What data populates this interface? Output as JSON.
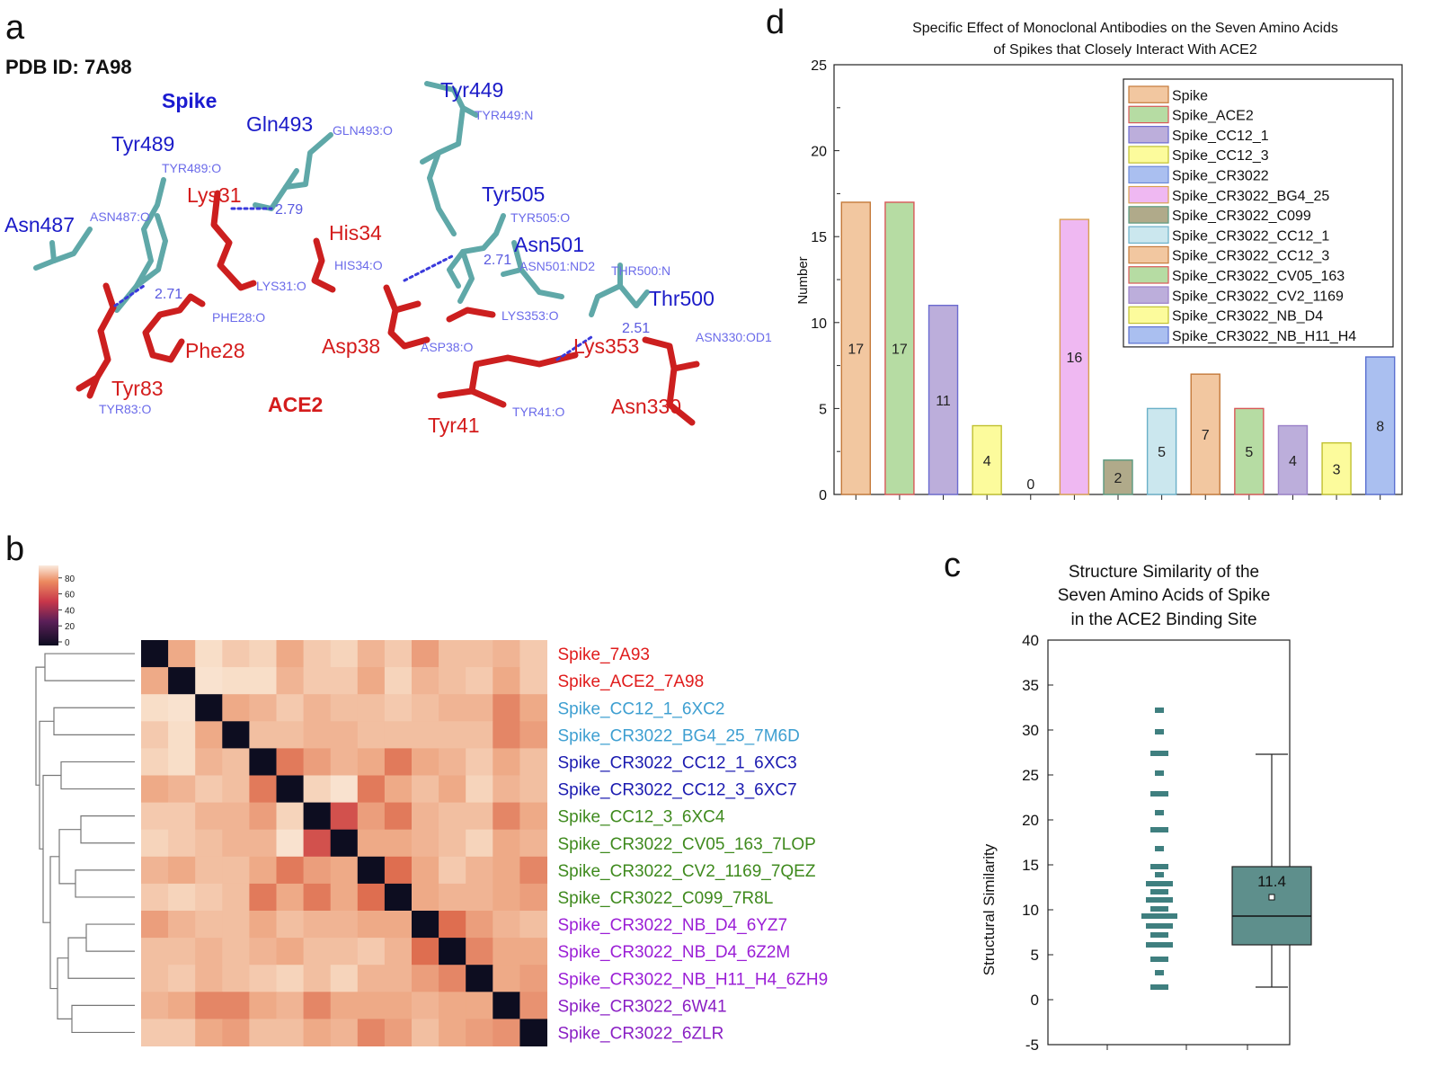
{
  "panel_labels": {
    "a": "a",
    "b": "b",
    "c": "c",
    "d": "d"
  },
  "panel_a": {
    "pdb_id": "PDB ID: 7A98",
    "spike_label": "Spike",
    "ace2_label": "ACE2",
    "spike_residues": [
      "Tyr449",
      "Gln493",
      "Tyr489",
      "Asn487",
      "Tyr505",
      "Asn501",
      "Thr500"
    ],
    "ace2_residues": [
      "Lys31",
      "His34",
      "Phe28",
      "Tyr83",
      "Asp38",
      "Lys353",
      "Tyr41",
      "Asn330"
    ],
    "atom_labels": [
      "TYR449:N",
      "GLN493:O",
      "TYR489:O",
      "ASN487:O",
      "TYR505:O",
      "ASN501:ND2",
      "THR500:N",
      "HIS34:O",
      "LYS31:O",
      "PHE28:O",
      "ASP38:O",
      "LYS353:O",
      "ASN330:OD1",
      "TYR41:O",
      "TYR83:O"
    ],
    "distances": [
      "2.79",
      "2.71",
      "2.71",
      "2.51"
    ]
  },
  "panel_b": {
    "color_scale_ticks": [
      "80",
      "60",
      "40",
      "20",
      "0"
    ],
    "row_labels": [
      {
        "text": "Spike_7A93",
        "color": "#e01c1c"
      },
      {
        "text": "Spike_ACE2_7A98",
        "color": "#e01c1c"
      },
      {
        "text": "Spike_CC12_1_6XC2",
        "color": "#3e9fd1"
      },
      {
        "text": "Spike_CR3022_BG4_25_7M6D",
        "color": "#3e9fd1"
      },
      {
        "text": "Spike_CR3022_CC12_1_6XC3",
        "color": "#1b1bb0"
      },
      {
        "text": "Spike_CR3022_CC12_3_6XC7",
        "color": "#1b1bb0"
      },
      {
        "text": "Spike_CC12_3_6XC4",
        "color": "#3f8a1e"
      },
      {
        "text": "Spike_CR3022_CV05_163_7LOP",
        "color": "#3f8a1e"
      },
      {
        "text": "Spike_CR3022_CV2_1169_7QEZ",
        "color": "#3f8a1e"
      },
      {
        "text": "Spike_CR3022_C099_7R8L",
        "color": "#3f8a1e"
      },
      {
        "text": "Spike_CR3022_NB_D4_6YZ7",
        "color": "#9b1fd6"
      },
      {
        "text": "Spike_CR3022_NB_D4_6Z2M",
        "color": "#9b1fd6"
      },
      {
        "text": "Spike_CR3022_NB_H11_H4_6ZH9",
        "color": "#9b1fd6"
      },
      {
        "text": "Spike_CR3022_6W41",
        "color": "#8a1fc4"
      },
      {
        "text": "Spike_CR3022_6ZLR",
        "color": "#8a1fc4"
      }
    ],
    "matrix": [
      [
        0,
        80,
        90,
        86,
        88,
        80,
        86,
        88,
        82,
        86,
        78,
        84,
        84,
        82,
        86
      ],
      [
        80,
        0,
        92,
        90,
        90,
        82,
        86,
        86,
        80,
        88,
        82,
        84,
        86,
        80,
        86
      ],
      [
        90,
        92,
        0,
        80,
        82,
        86,
        82,
        84,
        84,
        86,
        84,
        82,
        82,
        74,
        80
      ],
      [
        86,
        90,
        80,
        0,
        84,
        84,
        82,
        82,
        84,
        84,
        84,
        84,
        84,
        74,
        78
      ],
      [
        88,
        90,
        82,
        84,
        0,
        72,
        78,
        82,
        80,
        72,
        80,
        82,
        86,
        80,
        84
      ],
      [
        80,
        82,
        86,
        84,
        72,
        0,
        88,
        92,
        72,
        80,
        84,
        80,
        88,
        82,
        84
      ],
      [
        86,
        86,
        82,
        82,
        78,
        88,
        0,
        62,
        78,
        72,
        82,
        84,
        84,
        74,
        80
      ],
      [
        88,
        86,
        84,
        82,
        82,
        92,
        62,
        0,
        80,
        80,
        82,
        84,
        88,
        80,
        82
      ],
      [
        82,
        80,
        84,
        84,
        80,
        72,
        78,
        80,
        0,
        70,
        80,
        86,
        82,
        80,
        74
      ],
      [
        86,
        88,
        86,
        84,
        72,
        80,
        72,
        80,
        70,
        0,
        80,
        82,
        82,
        80,
        78
      ],
      [
        78,
        82,
        84,
        84,
        80,
        84,
        82,
        82,
        80,
        80,
        0,
        70,
        78,
        82,
        84
      ],
      [
        84,
        84,
        82,
        84,
        82,
        80,
        84,
        84,
        86,
        82,
        70,
        0,
        74,
        80,
        80
      ],
      [
        84,
        86,
        82,
        84,
        86,
        88,
        84,
        88,
        82,
        82,
        78,
        74,
        0,
        80,
        78
      ],
      [
        82,
        80,
        74,
        74,
        80,
        82,
        74,
        80,
        80,
        80,
        82,
        80,
        80,
        0,
        76
      ],
      [
        86,
        86,
        80,
        78,
        84,
        84,
        80,
        82,
        74,
        78,
        84,
        80,
        78,
        76,
        0
      ]
    ]
  },
  "chart_data": [
    {
      "type": "bar",
      "title": "Specific Effect of Monoclonal Antibodies on the Seven Amino Acids of Spikes that Closely Interact With ACE2",
      "title_lines": [
        "Specific Effect of Monoclonal Antibodies on the Seven Amino Acids",
        "of Spikes that Closely Interact With ACE2"
      ],
      "xlabel": "",
      "ylabel": "Number",
      "ylim": [
        0,
        25
      ],
      "yticks": [
        "0",
        "5",
        "10",
        "15",
        "20",
        "25"
      ],
      "categories": [
        "Spike",
        "Spike_ACE2",
        "Spike_CC12_1",
        "Spike_CC12_3",
        "Spike_CR3022",
        "Spike_CR3022_BG4_25",
        "Spike_CR3022_C099",
        "Spike_CR3022_CC12_1",
        "Spike_CR3022_CC12_3",
        "Spike_CR3022_CV05_163",
        "Spike_CR3022_CV2_1169",
        "Spike_CR3022_NB_D4",
        "Spike_CR3022_NB_H11_H4"
      ],
      "values": [
        17,
        17,
        11,
        4,
        0,
        16,
        2,
        5,
        7,
        5,
        4,
        3,
        8
      ],
      "value_labels": [
        "17",
        "17",
        "11",
        "4",
        "0",
        "16",
        "2",
        "5",
        "7",
        "5",
        "4",
        "3",
        "8"
      ],
      "fill_colors": [
        "#f2c7a0",
        "#b6dca3",
        "#bcaedb",
        "#fcfb9c",
        "#aabff0",
        "#efb8f2",
        "#b0aa8a",
        "#cbe7ee",
        "#f2c7a0",
        "#b6dca3",
        "#bcaedb",
        "#fcfb9c",
        "#aabff0"
      ],
      "edge_colors": [
        "#c47a3a",
        "#d85858",
        "#6b6bd0",
        "#c0c030",
        "#6a88d8",
        "#d8a050",
        "#5a9a80",
        "#6ab0c8",
        "#c47a3a",
        "#d85858",
        "#9a80c8",
        "#c0c030",
        "#5a70d0"
      ],
      "legend_position": "top-right"
    },
    {
      "type": "box",
      "title": "Structure Similarity of the Seven Amino Acids of Spike in the ACE2 Binding Site",
      "title_lines": [
        "Structure Similarity of the",
        "Seven Amino Acids of Spike",
        "in the ACE2 Binding Site"
      ],
      "ylabel": "Structural Similarity",
      "ylim": [
        -5,
        40
      ],
      "yticks": [
        "-5",
        "0",
        "5",
        "10",
        "15",
        "20",
        "25",
        "30",
        "35",
        "40"
      ],
      "mean": 11.4,
      "mean_label": "11.4",
      "median": 9.3,
      "q1": 6.1,
      "q3": 14.8,
      "whisker_low": 1.4,
      "whisker_high": 27.3,
      "points": [
        {
          "y": 32.2,
          "w": 1
        },
        {
          "y": 29.8,
          "w": 1
        },
        {
          "y": 27.4,
          "w": 2
        },
        {
          "y": 25.2,
          "w": 1
        },
        {
          "y": 22.9,
          "w": 2
        },
        {
          "y": 20.8,
          "w": 1
        },
        {
          "y": 18.9,
          "w": 2
        },
        {
          "y": 16.8,
          "w": 1
        },
        {
          "y": 14.8,
          "w": 2
        },
        {
          "y": 13.9,
          "w": 1
        },
        {
          "y": 12.9,
          "w": 3
        },
        {
          "y": 12.0,
          "w": 2
        },
        {
          "y": 11.1,
          "w": 3
        },
        {
          "y": 10.1,
          "w": 2
        },
        {
          "y": 9.3,
          "w": 4
        },
        {
          "y": 8.2,
          "w": 3
        },
        {
          "y": 7.2,
          "w": 2
        },
        {
          "y": 6.1,
          "w": 3
        },
        {
          "y": 4.5,
          "w": 2
        },
        {
          "y": 3.0,
          "w": 1
        },
        {
          "y": 1.4,
          "w": 2
        }
      ],
      "point_color": "#3f7f7f"
    }
  ]
}
